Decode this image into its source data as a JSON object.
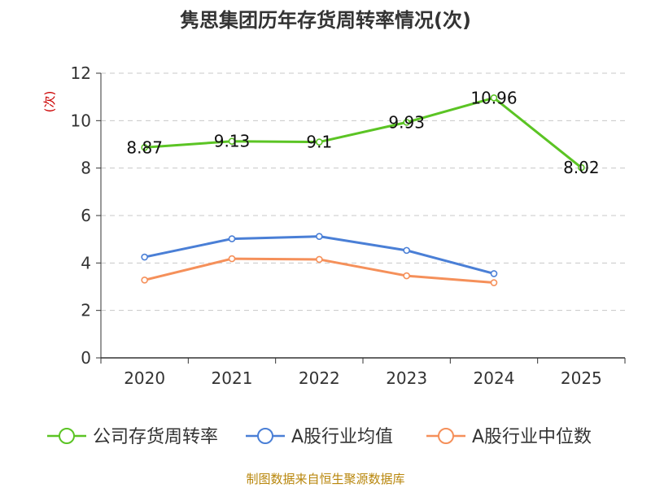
{
  "chart_data": {
    "type": "line",
    "title": "隽思集团历年存货周转率情况(次)",
    "ylabel": "(次)",
    "xlabel": "",
    "categories": [
      "2020",
      "2021",
      "2022",
      "2023",
      "2024",
      "2025"
    ],
    "ylim": [
      0,
      12
    ],
    "yticks": [
      0,
      2,
      4,
      6,
      8,
      10,
      12
    ],
    "grid": true,
    "legend_position": "bottom",
    "series": [
      {
        "name": "公司存货周转率",
        "color": "#5bc424",
        "values": [
          8.87,
          9.13,
          9.1,
          9.93,
          10.96,
          8.02
        ],
        "show_labels": true,
        "labels": [
          "8.87",
          "9.13",
          "9.1",
          "9.93",
          "10.96",
          "8.02"
        ]
      },
      {
        "name": "A股行业均值",
        "color": "#4a7fd6",
        "values": [
          4.25,
          5.02,
          5.12,
          4.53,
          3.55,
          null
        ],
        "show_labels": false
      },
      {
        "name": "A股行业中位数",
        "color": "#f5905a",
        "values": [
          3.28,
          4.18,
          4.15,
          3.46,
          3.17,
          null
        ],
        "show_labels": false
      }
    ]
  },
  "footer": {
    "source_text": "制图数据来自恒生聚源数据库"
  }
}
